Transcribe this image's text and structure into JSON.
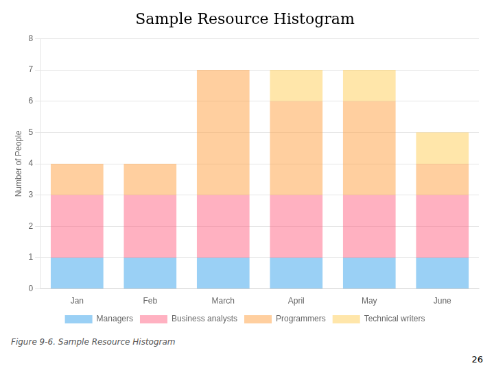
{
  "chart_data": {
    "type": "bar",
    "title": "Sample Resource Histogram",
    "subtitle": "26",
    "annotations": [
      "Figure 9-6. Sample Resource Histogram"
    ],
    "y_label": "Number of People",
    "categories": [
      "Jan",
      "Feb",
      "March",
      "April",
      "May",
      "June"
    ],
    "series": [
      {
        "name": "Managers",
        "values": [
          1,
          1,
          1,
          1,
          1,
          1
        ]
      },
      {
        "name": "Business analysts",
        "values": [
          2,
          2,
          2,
          2,
          2,
          2
        ]
      },
      {
        "name": "Programmers",
        "values": [
          1,
          1,
          4,
          3,
          3,
          1
        ]
      },
      {
        "name": "Technical writers",
        "values": [
          0,
          0,
          0,
          1,
          1,
          1
        ]
      }
    ],
    "stacked": true,
    "ylim": [
      0,
      8
    ],
    "yticks": [
      0,
      1,
      2,
      3,
      4,
      5,
      6,
      7,
      8
    ],
    "grid": true,
    "legend": "bottom"
  }
}
